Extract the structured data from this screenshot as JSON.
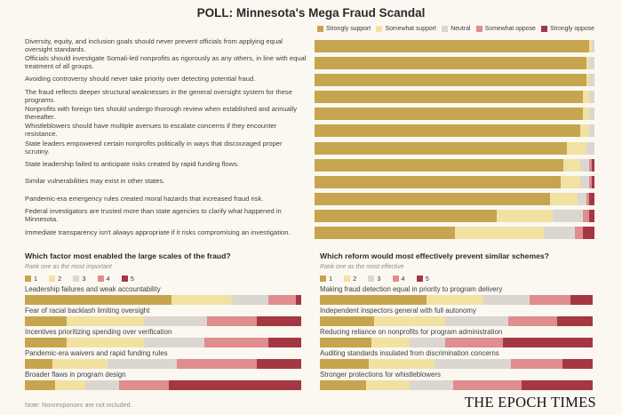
{
  "title": "POLL: Minnesota's Mega Fraud Scandal",
  "colors": {
    "background": "#FBF8F1",
    "title_text": "#2A2A2A",
    "body_text": "#3F3F3F",
    "muted_text": "#8D8D8D",
    "scale": [
      "#C7A54F",
      "#F1E2A2",
      "#DBD7D0",
      "#DF8D8E",
      "#A43842"
    ]
  },
  "chart_data": [
    {
      "type": "bar",
      "variant": "horizontal-stacked-percent",
      "legend": [
        "Strongly support",
        "Somewhat support",
        "Neutral",
        "Somewhat oppose",
        "Strongly oppose"
      ],
      "xlim": [
        0,
        100
      ],
      "rows": [
        {
          "label": "Diversity, equity, and inclusion goals should never prevent officials from applying equal oversight standards.",
          "values": [
            98,
            1,
            1,
            0,
            0
          ]
        },
        {
          "label": "Officials should investigate Somali-led nonprofits as rigorously as any others, in line with equal treatment of all groups.",
          "values": [
            97,
            1,
            2,
            0,
            0
          ]
        },
        {
          "label": "Avoiding controversy should never take priority over detecting potential fraud.",
          "values": [
            97,
            1,
            2,
            0,
            0
          ]
        },
        {
          "label": "The fraud reflects deeper structural weaknesses in the general oversight system for these programs.",
          "values": [
            96,
            2,
            2,
            0,
            0
          ]
        },
        {
          "label": "Nonprofits with foreign ties should undergo thorough review when established and annually thereafter.",
          "values": [
            96,
            2,
            2,
            0,
            0
          ]
        },
        {
          "label": "Whistleblowers should have multiple avenues to escalate concerns if they encounter resistance.",
          "values": [
            95,
            3,
            2,
            0,
            0
          ]
        },
        {
          "label": "State leaders empowered certain nonprofits politically in ways that discouraged proper scrutiny.",
          "values": [
            90,
            7,
            3,
            0,
            0
          ]
        },
        {
          "label": "State leadership failed to anticipate risks created by rapid funding flows.",
          "values": [
            89,
            6,
            3,
            1,
            1
          ]
        },
        {
          "label": "Similar vulnerabilities may exist in other states.",
          "values": [
            88,
            7,
            3,
            1,
            1
          ]
        },
        {
          "label": "Pandemic-era emergency rules created moral hazards that increased fraud risk.",
          "values": [
            84,
            10,
            3,
            1,
            2
          ]
        },
        {
          "label": "Federal investigators are trusted more than state agencies to clarify what happened in Minnesota.",
          "values": [
            65,
            20,
            11,
            2,
            2
          ]
        },
        {
          "label": "Immediate transparency isn't always appropriate if it risks compromising an investigation.",
          "values": [
            50,
            32,
            11,
            3,
            4
          ]
        }
      ]
    },
    {
      "type": "bar",
      "variant": "horizontal-stacked-percent",
      "title": "Which factor most enabled the large scales of the fraud?",
      "subtitle": "Rank one as the most important",
      "legend": [
        "1",
        "2",
        "3",
        "4",
        "5"
      ],
      "xlim": [
        0,
        100
      ],
      "rows": [
        {
          "label": "Leadership failures and weak accountability",
          "values": [
            53,
            22,
            13,
            10,
            2
          ]
        },
        {
          "label": "Fear of racial backlash limiting oversight",
          "values": [
            15,
            28,
            23,
            18,
            16
          ]
        },
        {
          "label": "Incentives prioritizing spending over verification",
          "values": [
            15,
            28,
            22,
            23,
            12
          ]
        },
        {
          "label": "Pandemic-era waivers and rapid funding rules",
          "values": [
            10,
            20,
            25,
            29,
            16
          ]
        },
        {
          "label": "Broader flaws in program design",
          "values": [
            11,
            11,
            12,
            18,
            48
          ]
        }
      ]
    },
    {
      "type": "bar",
      "variant": "horizontal-stacked-percent",
      "title": "Which reform would most effectively prevent similar schemes?",
      "subtitle": "Rank one as the most effective",
      "legend": [
        "1",
        "2",
        "3",
        "4",
        "5"
      ],
      "xlim": [
        0,
        100
      ],
      "rows": [
        {
          "label": "Making fraud detection equal in priority to program delivery",
          "values": [
            39,
            21,
            17,
            15,
            8
          ]
        },
        {
          "label": "Independent inspectors general with full autonomy",
          "values": [
            20,
            26,
            23,
            18,
            13
          ]
        },
        {
          "label": "Reducing reliance on nonprofits for program administration",
          "values": [
            19,
            14,
            13,
            21,
            33
          ]
        },
        {
          "label": "Auditing standards insulated from discrimination concerns",
          "values": [
            18,
            24,
            28,
            19,
            11
          ]
        },
        {
          "label": "Stronger protections for whistleblowers",
          "values": [
            17,
            16,
            16,
            25,
            26
          ]
        }
      ]
    }
  ],
  "footer": {
    "note": "Note: Nonresponses are not included.",
    "brand": "THE EPOCH TIMES"
  }
}
